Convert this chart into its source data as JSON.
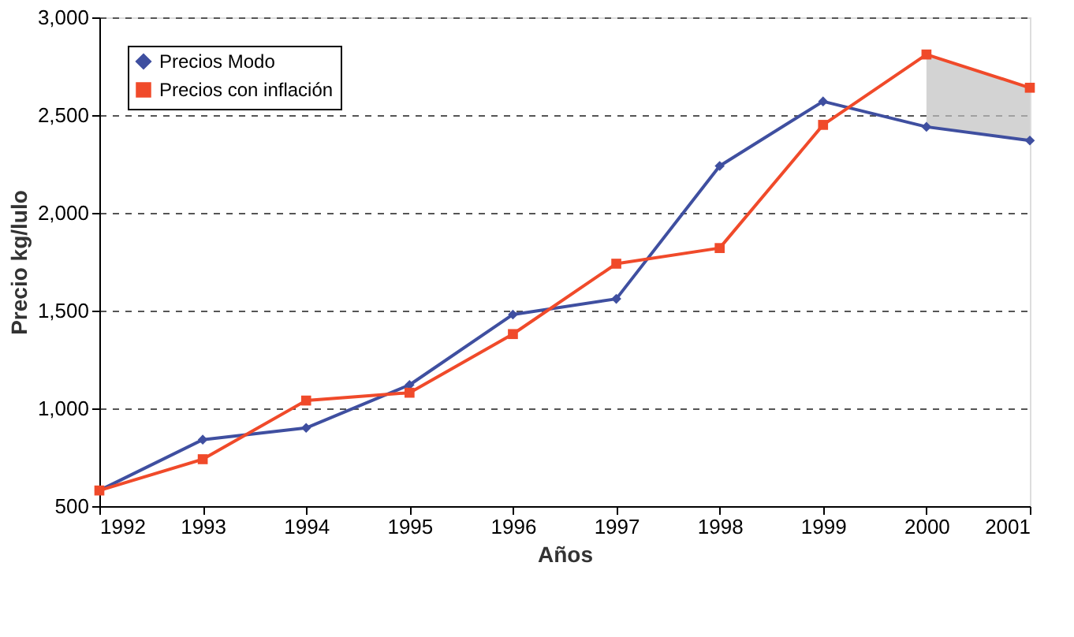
{
  "chart_data": {
    "type": "line",
    "xlabel": "Años",
    "ylabel": "Precio kg/lulo",
    "x": [
      1992,
      1993,
      1994,
      1995,
      1996,
      1997,
      1998,
      1999,
      2000,
      2001
    ],
    "series": [
      {
        "name": "Precios Modo",
        "color": "#3f4fa0",
        "marker": "diamond",
        "values": [
          580,
          840,
          900,
          1120,
          1480,
          1560,
          2240,
          2570,
          2440,
          2370
        ]
      },
      {
        "name": "Precios con inflación",
        "color": "#f04a2a",
        "marker": "square",
        "values": [
          580,
          740,
          1040,
          1080,
          1380,
          1740,
          1820,
          2450,
          2810,
          2640
        ],
        "lower": [
          null,
          null,
          null,
          null,
          null,
          null,
          null,
          null,
          2440,
          2370
        ],
        "upper": [
          null,
          null,
          null,
          null,
          null,
          null,
          null,
          null,
          2810,
          2640
        ]
      }
    ],
    "xlim": [
      1992,
      2001
    ],
    "xticks": [
      1992,
      1993,
      1994,
      1995,
      1996,
      1997,
      1998,
      1999,
      2000,
      2001
    ],
    "ylim": [
      500,
      3000
    ],
    "yticks": [
      500,
      {
        "value": 1000,
        "label": "1,000"
      },
      {
        "value": 1500,
        "label": "1,500"
      },
      {
        "value": 2000,
        "label": "2,000"
      },
      {
        "value": 2500,
        "label": "2,500"
      },
      {
        "value": 3000,
        "label": "3,000"
      }
    ],
    "grid": "y",
    "legend": "top left",
    "line_style": "solid"
  }
}
